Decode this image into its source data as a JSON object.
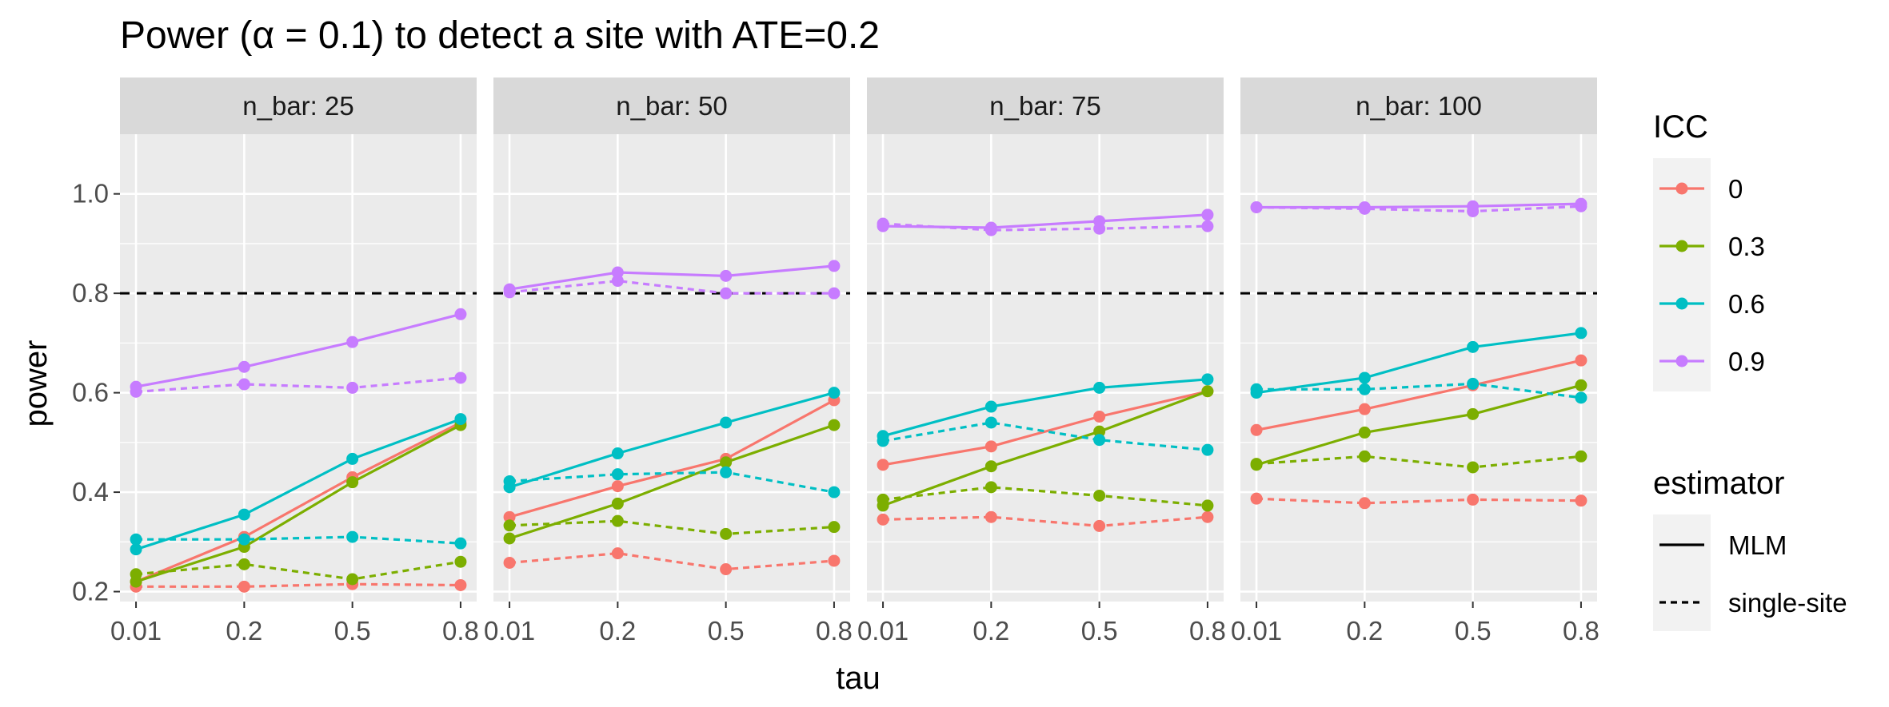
{
  "chart_data": {
    "type": "line",
    "title": "Power (α = 0.1) to detect a site with ATE=0.2",
    "xlabel": "tau",
    "ylabel": "power",
    "x_ticks": [
      "0.01",
      "0.2",
      "0.5",
      "0.8"
    ],
    "y_ticks": [
      "0.2",
      "0.4",
      "0.6",
      "0.8",
      "1.0"
    ],
    "ylim": [
      0.18,
      1.12
    ],
    "reference_line": {
      "y": 0.8,
      "style": "dashed",
      "color": "#000000"
    },
    "grid": true,
    "legend_position": "right",
    "legend": {
      "icc_title": "ICC",
      "icc_entries": [
        {
          "label": "0",
          "color": "#F8766D"
        },
        {
          "label": "0.3",
          "color": "#7CAE00"
        },
        {
          "label": "0.6",
          "color": "#00BFC4"
        },
        {
          "label": "0.9",
          "color": "#C77CFF"
        }
      ],
      "estimator_title": "estimator",
      "estimator_entries": [
        {
          "label": "MLM",
          "style": "solid"
        },
        {
          "label": "single-site",
          "style": "dashed"
        }
      ]
    },
    "panels": [
      {
        "label": "n_bar: 25",
        "series": [
          {
            "icc": "0",
            "estimator": "MLM",
            "values": [
              0.22,
              0.31,
              0.43,
              0.54
            ]
          },
          {
            "icc": "0",
            "estimator": "single-site",
            "values": [
              0.21,
              0.21,
              0.215,
              0.213
            ]
          },
          {
            "icc": "0.3",
            "estimator": "MLM",
            "values": [
              0.22,
              0.29,
              0.42,
              0.535
            ]
          },
          {
            "icc": "0.3",
            "estimator": "single-site",
            "values": [
              0.235,
              0.255,
              0.225,
              0.26
            ]
          },
          {
            "icc": "0.6",
            "estimator": "MLM",
            "values": [
              0.285,
              0.355,
              0.467,
              0.547
            ]
          },
          {
            "icc": "0.6",
            "estimator": "single-site",
            "values": [
              0.305,
              0.305,
              0.31,
              0.297
            ]
          },
          {
            "icc": "0.9",
            "estimator": "MLM",
            "values": [
              0.612,
              0.652,
              0.702,
              0.758
            ]
          },
          {
            "icc": "0.9",
            "estimator": "single-site",
            "values": [
              0.602,
              0.617,
              0.61,
              0.63
            ]
          }
        ]
      },
      {
        "label": "n_bar: 50",
        "series": [
          {
            "icc": "0",
            "estimator": "MLM",
            "values": [
              0.35,
              0.412,
              0.467,
              0.585
            ]
          },
          {
            "icc": "0",
            "estimator": "single-site",
            "values": [
              0.258,
              0.277,
              0.245,
              0.262
            ]
          },
          {
            "icc": "0.3",
            "estimator": "MLM",
            "values": [
              0.307,
              0.377,
              0.46,
              0.535
            ]
          },
          {
            "icc": "0.3",
            "estimator": "single-site",
            "values": [
              0.333,
              0.342,
              0.316,
              0.33
            ]
          },
          {
            "icc": "0.6",
            "estimator": "MLM",
            "values": [
              0.41,
              0.478,
              0.54,
              0.6
            ]
          },
          {
            "icc": "0.6",
            "estimator": "single-site",
            "values": [
              0.422,
              0.436,
              0.44,
              0.4
            ]
          },
          {
            "icc": "0.9",
            "estimator": "MLM",
            "values": [
              0.808,
              0.842,
              0.835,
              0.855
            ]
          },
          {
            "icc": "0.9",
            "estimator": "single-site",
            "values": [
              0.802,
              0.825,
              0.8,
              0.8
            ]
          }
        ]
      },
      {
        "label": "n_bar: 75",
        "series": [
          {
            "icc": "0",
            "estimator": "MLM",
            "values": [
              0.455,
              0.492,
              0.552,
              0.603
            ]
          },
          {
            "icc": "0",
            "estimator": "single-site",
            "values": [
              0.345,
              0.35,
              0.332,
              0.35
            ]
          },
          {
            "icc": "0.3",
            "estimator": "MLM",
            "values": [
              0.373,
              0.452,
              0.522,
              0.603
            ]
          },
          {
            "icc": "0.3",
            "estimator": "single-site",
            "values": [
              0.385,
              0.41,
              0.393,
              0.373
            ]
          },
          {
            "icc": "0.6",
            "estimator": "MLM",
            "values": [
              0.513,
              0.572,
              0.61,
              0.627
            ]
          },
          {
            "icc": "0.6",
            "estimator": "single-site",
            "values": [
              0.503,
              0.54,
              0.505,
              0.485
            ]
          },
          {
            "icc": "0.9",
            "estimator": "MLM",
            "values": [
              0.935,
              0.932,
              0.945,
              0.958
            ]
          },
          {
            "icc": "0.9",
            "estimator": "single-site",
            "values": [
              0.94,
              0.927,
              0.93,
              0.935
            ]
          }
        ]
      },
      {
        "label": "n_bar: 100",
        "series": [
          {
            "icc": "0",
            "estimator": "MLM",
            "values": [
              0.525,
              0.567,
              0.615,
              0.665
            ]
          },
          {
            "icc": "0",
            "estimator": "single-site",
            "values": [
              0.387,
              0.378,
              0.385,
              0.383
            ]
          },
          {
            "icc": "0.3",
            "estimator": "MLM",
            "values": [
              0.455,
              0.52,
              0.557,
              0.615
            ]
          },
          {
            "icc": "0.3",
            "estimator": "single-site",
            "values": [
              0.457,
              0.472,
              0.45,
              0.472
            ]
          },
          {
            "icc": "0.6",
            "estimator": "MLM",
            "values": [
              0.6,
              0.63,
              0.692,
              0.72
            ]
          },
          {
            "icc": "0.6",
            "estimator": "single-site",
            "values": [
              0.607,
              0.607,
              0.618,
              0.59
            ]
          },
          {
            "icc": "0.9",
            "estimator": "MLM",
            "values": [
              0.973,
              0.973,
              0.975,
              0.98
            ]
          },
          {
            "icc": "0.9",
            "estimator": "single-site",
            "values": [
              0.973,
              0.97,
              0.965,
              0.975
            ]
          }
        ]
      }
    ]
  }
}
